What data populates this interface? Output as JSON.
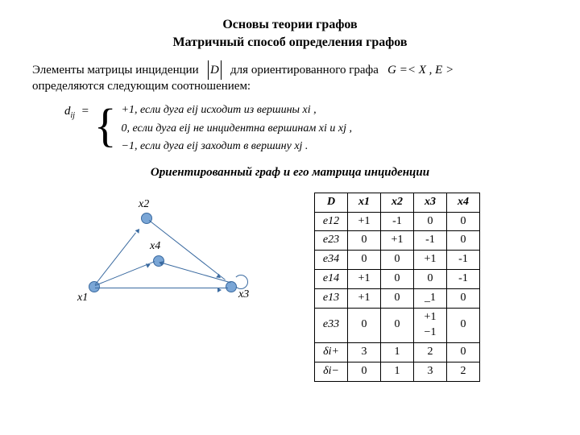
{
  "title1": "Основы теории графов",
  "title2": "Матричный способ определения графов",
  "para_a": "Элементы матрицы инциденции",
  "para_b": "для ориентированного графа",
  "para_c": "определяются следующим соотношением:",
  "matname": "D",
  "graphset": "G =< X , E >",
  "def_lhs": "d",
  "def_sub": "ij",
  "def_eq": "=",
  "cases": {
    "c1": "+1, если дуга eij исходит из вершины xi ,",
    "c2": "0,  если дуга eij  не инцидентна вершинам xi и xj ,",
    "c3": "−1, если дуга eij  заходит в вершину xj ."
  },
  "figcap": "Ориентированный граф и его матрица инциденции",
  "graph": {
    "labels": {
      "x1": "x1",
      "x2": "x2",
      "x3": "x3",
      "x4": "x4"
    }
  },
  "table": {
    "header": [
      "D",
      "x1",
      "x2",
      "x3",
      "x4"
    ],
    "rows": [
      [
        "e12",
        "+1",
        "-1",
        "0",
        "0"
      ],
      [
        "e23",
        "0",
        "+1",
        "-1",
        "0"
      ],
      [
        "e34",
        "0",
        "0",
        "+1",
        "-1"
      ],
      [
        "e14",
        "+1",
        "0",
        "0",
        "-1"
      ],
      [
        "e13",
        "+1",
        "0",
        "_1",
        "0"
      ],
      [
        "e33",
        "0",
        "0",
        "+1\n−1",
        "0"
      ],
      [
        "δi+",
        "3",
        "1",
        "2",
        "0"
      ],
      [
        "δi−",
        "0",
        "1",
        "3",
        "2"
      ]
    ]
  }
}
